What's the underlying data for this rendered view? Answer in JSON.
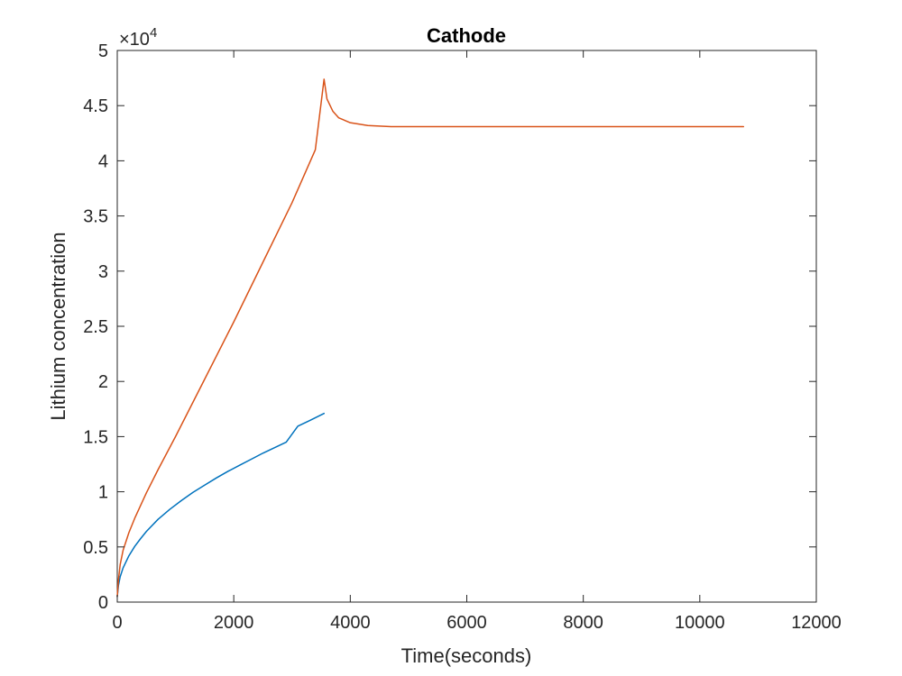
{
  "chart_data": {
    "type": "line",
    "title": "Cathode",
    "xlabel": "Time(seconds)",
    "ylabel": "Lithium concentration",
    "xlim": [
      0,
      12000
    ],
    "ylim": [
      0,
      50000
    ],
    "xticks": [
      0,
      2000,
      4000,
      6000,
      8000,
      10000,
      12000
    ],
    "xtick_labels": [
      "0",
      "2000",
      "4000",
      "6000",
      "8000",
      "10000",
      "12000"
    ],
    "yticks": [
      0,
      5000,
      10000,
      15000,
      20000,
      25000,
      30000,
      35000,
      40000,
      45000,
      50000
    ],
    "ytick_labels": [
      "0",
      "0.5",
      "1",
      "1.5",
      "2",
      "2.5",
      "3",
      "3.5",
      "4",
      "4.5",
      "5"
    ],
    "y_exponent_label": "×10",
    "y_exponent_power": "4",
    "grid": false,
    "series": [
      {
        "color": "#0072BD",
        "x": [
          0,
          20,
          50,
          100,
          200,
          300,
          400,
          500,
          700,
          900,
          1100,
          1300,
          1500,
          1700,
          1900,
          2100,
          2300,
          2500,
          2700,
          2900,
          3100,
          3300,
          3550
        ],
        "y": [
          500,
          1500,
          2300,
          3100,
          4200,
          5050,
          5750,
          6400,
          7500,
          8400,
          9200,
          9950,
          10600,
          11250,
          11850,
          12400,
          12950,
          13500,
          14000,
          14500,
          15950,
          16450,
          17100
        ]
      },
      {
        "color": "#D95319",
        "x": [
          0,
          20,
          50,
          100,
          200,
          300,
          500,
          700,
          1000,
          1500,
          2000,
          2500,
          3000,
          3400,
          3550,
          3600,
          3700,
          3800,
          4000,
          4300,
          4700,
          5500,
          7000,
          9000,
          10750
        ],
        "y": [
          500,
          2000,
          3400,
          4700,
          6300,
          7600,
          9900,
          12000,
          15000,
          20200,
          25400,
          30800,
          36200,
          41000,
          47400,
          45600,
          44500,
          43900,
          43450,
          43200,
          43100,
          43100,
          43100,
          43100,
          43100
        ]
      }
    ]
  }
}
